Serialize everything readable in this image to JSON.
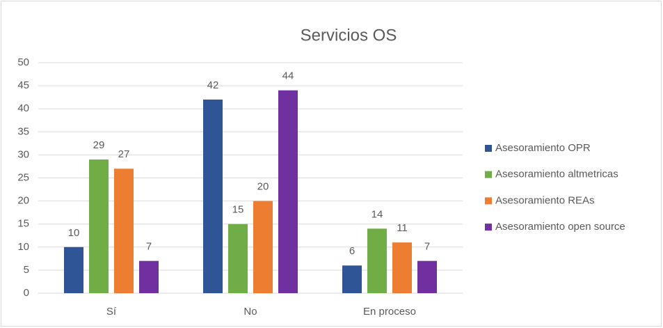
{
  "chart_data": {
    "type": "bar",
    "title": "Servicios OS",
    "categories": [
      "Sí",
      "No",
      "En proceso"
    ],
    "series": [
      {
        "name": "Asesoramiento OPR",
        "color": "#2f5597",
        "values": [
          10,
          42,
          6
        ]
      },
      {
        "name": "Asesoramiento altmetricas",
        "color": "#70ad47",
        "values": [
          29,
          15,
          14
        ]
      },
      {
        "name": "Asesoramiento REAs",
        "color": "#ed7d31",
        "values": [
          27,
          20,
          11
        ]
      },
      {
        "name": "Asesoramiento open source",
        "color": "#7030a0",
        "values": [
          7,
          44,
          7
        ]
      }
    ],
    "ylim": [
      0,
      50
    ],
    "yticks": [
      0,
      5,
      10,
      15,
      20,
      25,
      30,
      35,
      40,
      45,
      50
    ],
    "grid": true,
    "legend": "right"
  }
}
